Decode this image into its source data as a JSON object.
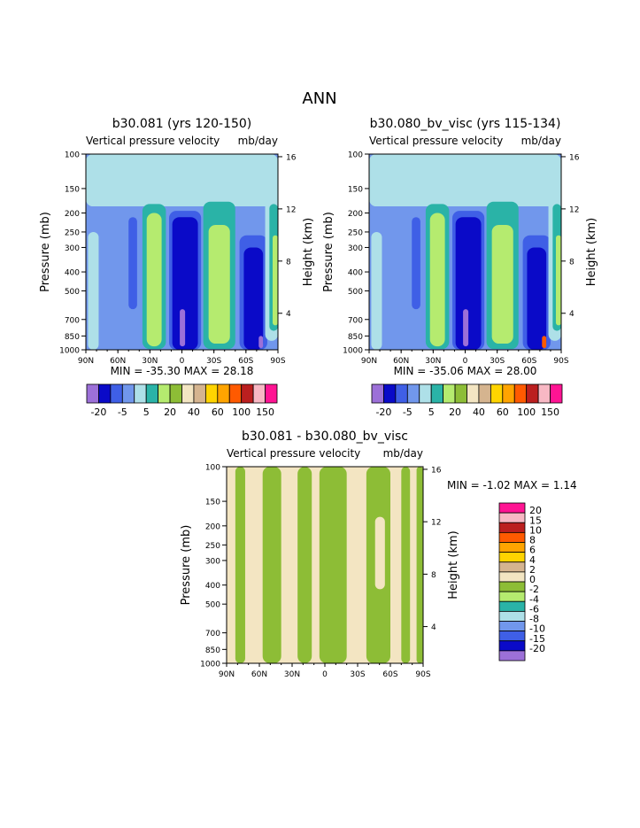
{
  "page_title": "ANN",
  "colors": {
    "c_m20": "#9c70d8",
    "c_m15": "#0a0ac8",
    "c_m10": "#3f5fe6",
    "c_m8": "#7197ec",
    "c_m6": "#aee0e8",
    "c_m4": "#2ab3a7",
    "c_m2": "#b5eb6f",
    "c_0": "#8dbd36",
    "c_2": "#f3e5c2",
    "c_4": "#d5b48f",
    "c_6": "#ffd400",
    "c_8": "#ffa400",
    "c_10": "#ff5a00",
    "c_15": "#bb1f1f",
    "c_20": "#f8b8c4",
    "c_max": "#ff1493"
  },
  "chart_data": [
    {
      "type": "heatmap",
      "title": "b30.081 (yrs 120-150)",
      "subtitle_left": "Vertical pressure velocity",
      "subtitle_right": "mb/day",
      "xlabel": "",
      "ylabel": "Pressure (mb)",
      "ylabel_right": "Height (km)",
      "x_ticks": [
        "90N",
        "60N",
        "30N",
        "0",
        "30S",
        "60S",
        "90S"
      ],
      "y_ticks": [
        "100",
        "150",
        "200",
        "250",
        "300",
        "400",
        "500",
        "700",
        "850",
        "1000"
      ],
      "y_tick_values": [
        100,
        150,
        200,
        250,
        300,
        400,
        500,
        700,
        850,
        1000
      ],
      "height_ticks": [
        "16",
        "12",
        "8",
        "4"
      ],
      "height_values": [
        16,
        12,
        8,
        4
      ],
      "stats": "MIN = -35.30   MAX =   28.18",
      "colorbar_labels": [
        "-20",
        "-5",
        "5",
        "20",
        "40",
        "60",
        "100",
        "150"
      ],
      "colorbar_colors": [
        "c_m20",
        "c_m15",
        "c_m10",
        "c_m8",
        "c_m6",
        "c_m4",
        "c_m2",
        "c_0",
        "c_2",
        "c_4",
        "c_6",
        "c_8",
        "c_10",
        "c_15",
        "c_20",
        "c_max"
      ],
      "background": "c_m8",
      "regions": [
        {
          "color": "c_m6",
          "lat": [
            -90,
            90
          ],
          "p": [
            100,
            185
          ]
        },
        {
          "color": "c_m10",
          "lat": [
            -50,
            -42
          ],
          "p": [
            210,
            620
          ]
        },
        {
          "color": "c_m6",
          "lat": [
            -88,
            -78
          ],
          "p": [
            250,
            1000
          ]
        },
        {
          "color": "c_m4",
          "lat": [
            -37,
            -15
          ],
          "p": [
            180,
            990
          ]
        },
        {
          "color": "c_m2",
          "lat": [
            -33,
            -19
          ],
          "p": [
            200,
            960
          ]
        },
        {
          "color": "c_m6",
          "lat": [
            -48,
            -39
          ],
          "p": [
            100,
            180
          ]
        },
        {
          "color": "c_m10",
          "lat": [
            -12,
            18
          ],
          "p": [
            195,
            1000
          ]
        },
        {
          "color": "c_m15",
          "lat": [
            -9,
            15
          ],
          "p": [
            210,
            1000
          ]
        },
        {
          "color": "c_m20",
          "lat": [
            -2,
            3
          ],
          "p": [
            620,
            960
          ]
        },
        {
          "color": "c_m4",
          "lat": [
            20,
            50
          ],
          "p": [
            175,
            990
          ]
        },
        {
          "color": "c_m2",
          "lat": [
            25,
            45
          ],
          "p": [
            230,
            930
          ]
        },
        {
          "color": "c_m10",
          "lat": [
            54,
            80
          ],
          "p": [
            260,
            1000
          ]
        },
        {
          "color": "c_m15",
          "lat": [
            58,
            76
          ],
          "p": [
            300,
            1000
          ]
        },
        {
          "color": "c_m20",
          "lat": [
            72,
            76
          ],
          "p": [
            850,
            980
          ]
        },
        {
          "color": "c_m6",
          "lat": [
            78,
            90
          ],
          "p": [
            130,
            900
          ]
        },
        {
          "color": "c_m4",
          "lat": [
            82,
            90
          ],
          "p": [
            180,
            800
          ]
        },
        {
          "color": "c_m2",
          "lat": [
            85,
            90
          ],
          "p": [
            260,
            750
          ]
        }
      ]
    },
    {
      "type": "heatmap",
      "title": "b30.080_bv_visc (yrs 115-134)",
      "subtitle_left": "Vertical pressure velocity",
      "subtitle_right": "mb/day",
      "xlabel": "",
      "ylabel": "Pressure (mb)",
      "ylabel_right": "Height (km)",
      "x_ticks": [
        "90N",
        "60N",
        "30N",
        "0",
        "30S",
        "60S",
        "90S"
      ],
      "y_ticks": [
        "100",
        "150",
        "200",
        "250",
        "300",
        "400",
        "500",
        "700",
        "850",
        "1000"
      ],
      "y_tick_values": [
        100,
        150,
        200,
        250,
        300,
        400,
        500,
        700,
        850,
        1000
      ],
      "height_ticks": [
        "16",
        "12",
        "8",
        "4"
      ],
      "height_values": [
        16,
        12,
        8,
        4
      ],
      "stats": "MIN =  -35.06   MAX =   28.00",
      "colorbar_labels": [
        "-20",
        "-5",
        "5",
        "20",
        "40",
        "60",
        "100",
        "150"
      ],
      "colorbar_colors": [
        "c_m20",
        "c_m15",
        "c_m10",
        "c_m8",
        "c_m6",
        "c_m4",
        "c_m2",
        "c_0",
        "c_2",
        "c_4",
        "c_6",
        "c_8",
        "c_10",
        "c_15",
        "c_20",
        "c_max"
      ],
      "background": "c_m8",
      "regions": [
        {
          "color": "c_m6",
          "lat": [
            -90,
            90
          ],
          "p": [
            100,
            185
          ]
        },
        {
          "color": "c_m10",
          "lat": [
            -50,
            -42
          ],
          "p": [
            210,
            620
          ]
        },
        {
          "color": "c_m6",
          "lat": [
            -88,
            -78
          ],
          "p": [
            250,
            1000
          ]
        },
        {
          "color": "c_m4",
          "lat": [
            -37,
            -15
          ],
          "p": [
            180,
            990
          ]
        },
        {
          "color": "c_m2",
          "lat": [
            -33,
            -19
          ],
          "p": [
            200,
            960
          ]
        },
        {
          "color": "c_m6",
          "lat": [
            -48,
            -39
          ],
          "p": [
            100,
            180
          ]
        },
        {
          "color": "c_m10",
          "lat": [
            -12,
            18
          ],
          "p": [
            195,
            1000
          ]
        },
        {
          "color": "c_m15",
          "lat": [
            -9,
            15
          ],
          "p": [
            210,
            1000
          ]
        },
        {
          "color": "c_m20",
          "lat": [
            -2,
            3
          ],
          "p": [
            620,
            960
          ]
        },
        {
          "color": "c_m4",
          "lat": [
            20,
            50
          ],
          "p": [
            175,
            990
          ]
        },
        {
          "color": "c_m2",
          "lat": [
            25,
            45
          ],
          "p": [
            230,
            930
          ]
        },
        {
          "color": "c_m10",
          "lat": [
            54,
            80
          ],
          "p": [
            260,
            1000
          ]
        },
        {
          "color": "c_m15",
          "lat": [
            58,
            76
          ],
          "p": [
            300,
            1000
          ]
        },
        {
          "color": "c_10",
          "lat": [
            72,
            76
          ],
          "p": [
            850,
            980
          ]
        },
        {
          "color": "c_m6",
          "lat": [
            78,
            90
          ],
          "p": [
            130,
            900
          ]
        },
        {
          "color": "c_m4",
          "lat": [
            82,
            90
          ],
          "p": [
            180,
            800
          ]
        },
        {
          "color": "c_m2",
          "lat": [
            85,
            90
          ],
          "p": [
            260,
            750
          ]
        }
      ]
    },
    {
      "type": "heatmap",
      "title": "b30.081 - b30.080_bv_visc",
      "subtitle_left": "Vertical pressure velocity",
      "subtitle_right": "mb/day",
      "xlabel": "",
      "ylabel": "Pressure (mb)",
      "ylabel_right": "Height (km)",
      "x_ticks": [
        "90N",
        "60N",
        "30N",
        "0",
        "30S",
        "60S",
        "90S"
      ],
      "y_ticks": [
        "100",
        "150",
        "200",
        "250",
        "300",
        "400",
        "500",
        "700",
        "850",
        "1000"
      ],
      "y_tick_values": [
        100,
        150,
        200,
        250,
        300,
        400,
        500,
        700,
        850,
        1000
      ],
      "height_ticks": [
        "16",
        "12",
        "8",
        "4"
      ],
      "height_values": [
        16,
        12,
        8,
        4
      ],
      "stats": "MIN =   -1.02   MAX =    1.14",
      "colorbar_labels": [
        "20",
        "15",
        "10",
        "8",
        "6",
        "4",
        "2",
        "0",
        "-2",
        "-4",
        "-6",
        "-8",
        "-10",
        "-15",
        "-20"
      ],
      "colorbar_colors": [
        "c_max",
        "c_20",
        "c_15",
        "c_10",
        "c_8",
        "c_6",
        "c_4",
        "c_2",
        "c_0",
        "c_m2",
        "c_m4",
        "c_m6",
        "c_m8",
        "c_m10",
        "c_m15",
        "c_m20"
      ],
      "background": "c_2",
      "regions": [
        {
          "color": "c_0",
          "lat": [
            -82,
            -73
          ],
          "p": [
            100,
            1000
          ]
        },
        {
          "color": "c_0",
          "lat": [
            -57,
            -40
          ],
          "p": [
            100,
            1000
          ]
        },
        {
          "color": "c_0",
          "lat": [
            -25,
            -12
          ],
          "p": [
            100,
            1000
          ]
        },
        {
          "color": "c_0",
          "lat": [
            -5,
            20
          ],
          "p": [
            100,
            1000
          ]
        },
        {
          "color": "c_0",
          "lat": [
            38,
            60
          ],
          "p": [
            100,
            1000
          ]
        },
        {
          "color": "c_0",
          "lat": [
            70,
            78
          ],
          "p": [
            100,
            1000
          ]
        },
        {
          "color": "c_0",
          "lat": [
            84,
            90
          ],
          "p": [
            100,
            1000
          ]
        },
        {
          "color": "c_2",
          "lat": [
            46,
            55
          ],
          "p": [
            180,
            420
          ]
        }
      ]
    }
  ]
}
